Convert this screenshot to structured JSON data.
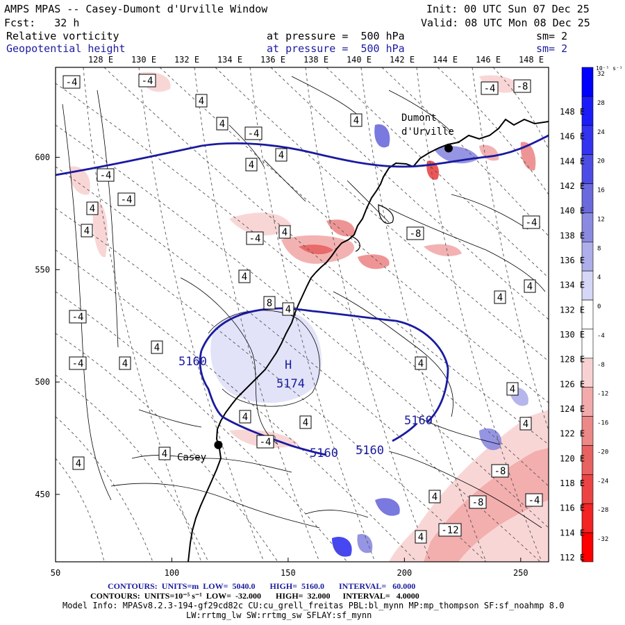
{
  "header": {
    "title": "AMPS MPAS -- Casey-Dumont d'Urville Window",
    "init": "Init: 00 UTC Sun 07 Dec 25",
    "fcst": "Fcst:   32 h",
    "valid": "Valid: 08 UTC Mon 08 Dec 25",
    "field1": "Relative vorticity",
    "field1_level": "at pressure =  500 hPa",
    "field1_sm": "sm= 2",
    "field2": "Geopotential height",
    "field2_level": "at pressure =  500 hPa",
    "field2_sm": "sm= 2"
  },
  "colors": {
    "height_contour": "#1a1aa0",
    "positive": "#0000ff",
    "negative": "#ff0000"
  },
  "chart_data": {
    "type": "contour-map",
    "title": "AMPS MPAS -- Casey-Dumont d'Urville Window",
    "x_ticks": [
      "50",
      "100",
      "150",
      "200",
      "250"
    ],
    "y_ticks": [
      "450",
      "500",
      "550",
      "600"
    ],
    "xlim": [
      50,
      262
    ],
    "ylim": [
      420,
      640
    ],
    "lon_labels_top": [
      "128 E",
      "130 E",
      "132 E",
      "134 E",
      "136 E",
      "138 E",
      "140 E",
      "142 E",
      "144 E",
      "146 E",
      "148 E"
    ],
    "lon_labels_right": [
      "148 E",
      "146 E",
      "144 E",
      "142 E",
      "140 E",
      "138 E",
      "136 E",
      "134 E",
      "132 E",
      "130 E",
      "128 E",
      "126 E",
      "124 E",
      "122 E",
      "120 E",
      "118 E",
      "116 E",
      "114 E",
      "112 E"
    ],
    "colorbar": {
      "unit": "10⁻⁵ s⁻¹",
      "labels": [
        "32",
        "28",
        "24",
        "20",
        "16",
        "12",
        "8",
        "4",
        "0",
        "-4",
        "-8",
        "-12",
        "-16",
        "-20",
        "-24",
        "-28",
        "-32"
      ],
      "colors": [
        "#0000ff",
        "#1c1cf8",
        "#3333f0",
        "#4d4de6",
        "#6a6adc",
        "#8a8ae0",
        "#aeaeea",
        "#d6d6f6",
        "#ffffff",
        "#ffffff",
        "#f8d2d2",
        "#f2aaaa",
        "#ec8888",
        "#e86262",
        "#ec4444",
        "#f22424",
        "#ff0000"
      ]
    },
    "height_contours": [
      {
        "label": "5160",
        "value": 5160
      },
      {
        "label": "5174",
        "value": 5174,
        "kind": "local max"
      }
    ],
    "high_marker": "H",
    "vorticity_labels": [
      "-4",
      "4",
      "8",
      "-8",
      "-12"
    ],
    "stations": [
      {
        "name": "Dumont d'Urville",
        "x": 219,
        "y": 604
      },
      {
        "name": "Casey",
        "x": 120,
        "y": 472
      }
    ]
  },
  "footer": {
    "line1": "CONTOURS:  UNITS=m  LOW=  5040.0       HIGH=  5160.0       INTERVAL=   60.000",
    "line2": "CONTOURS:  UNITS=10⁻⁵ s⁻¹  LOW=  -32.000       HIGH=  32.000      INTERVAL=   4.0000",
    "line3": "Model Info: MPASv8.2.3-194-gf29cd82c CU:cu_grell_freitas PBL:bl_mynn MP:mp_thompson SF:sf_noahmp 8.0",
    "line4": "LW:rrtmg_lw SW:rrtmg_sw SFLAY:sf_mynn"
  }
}
